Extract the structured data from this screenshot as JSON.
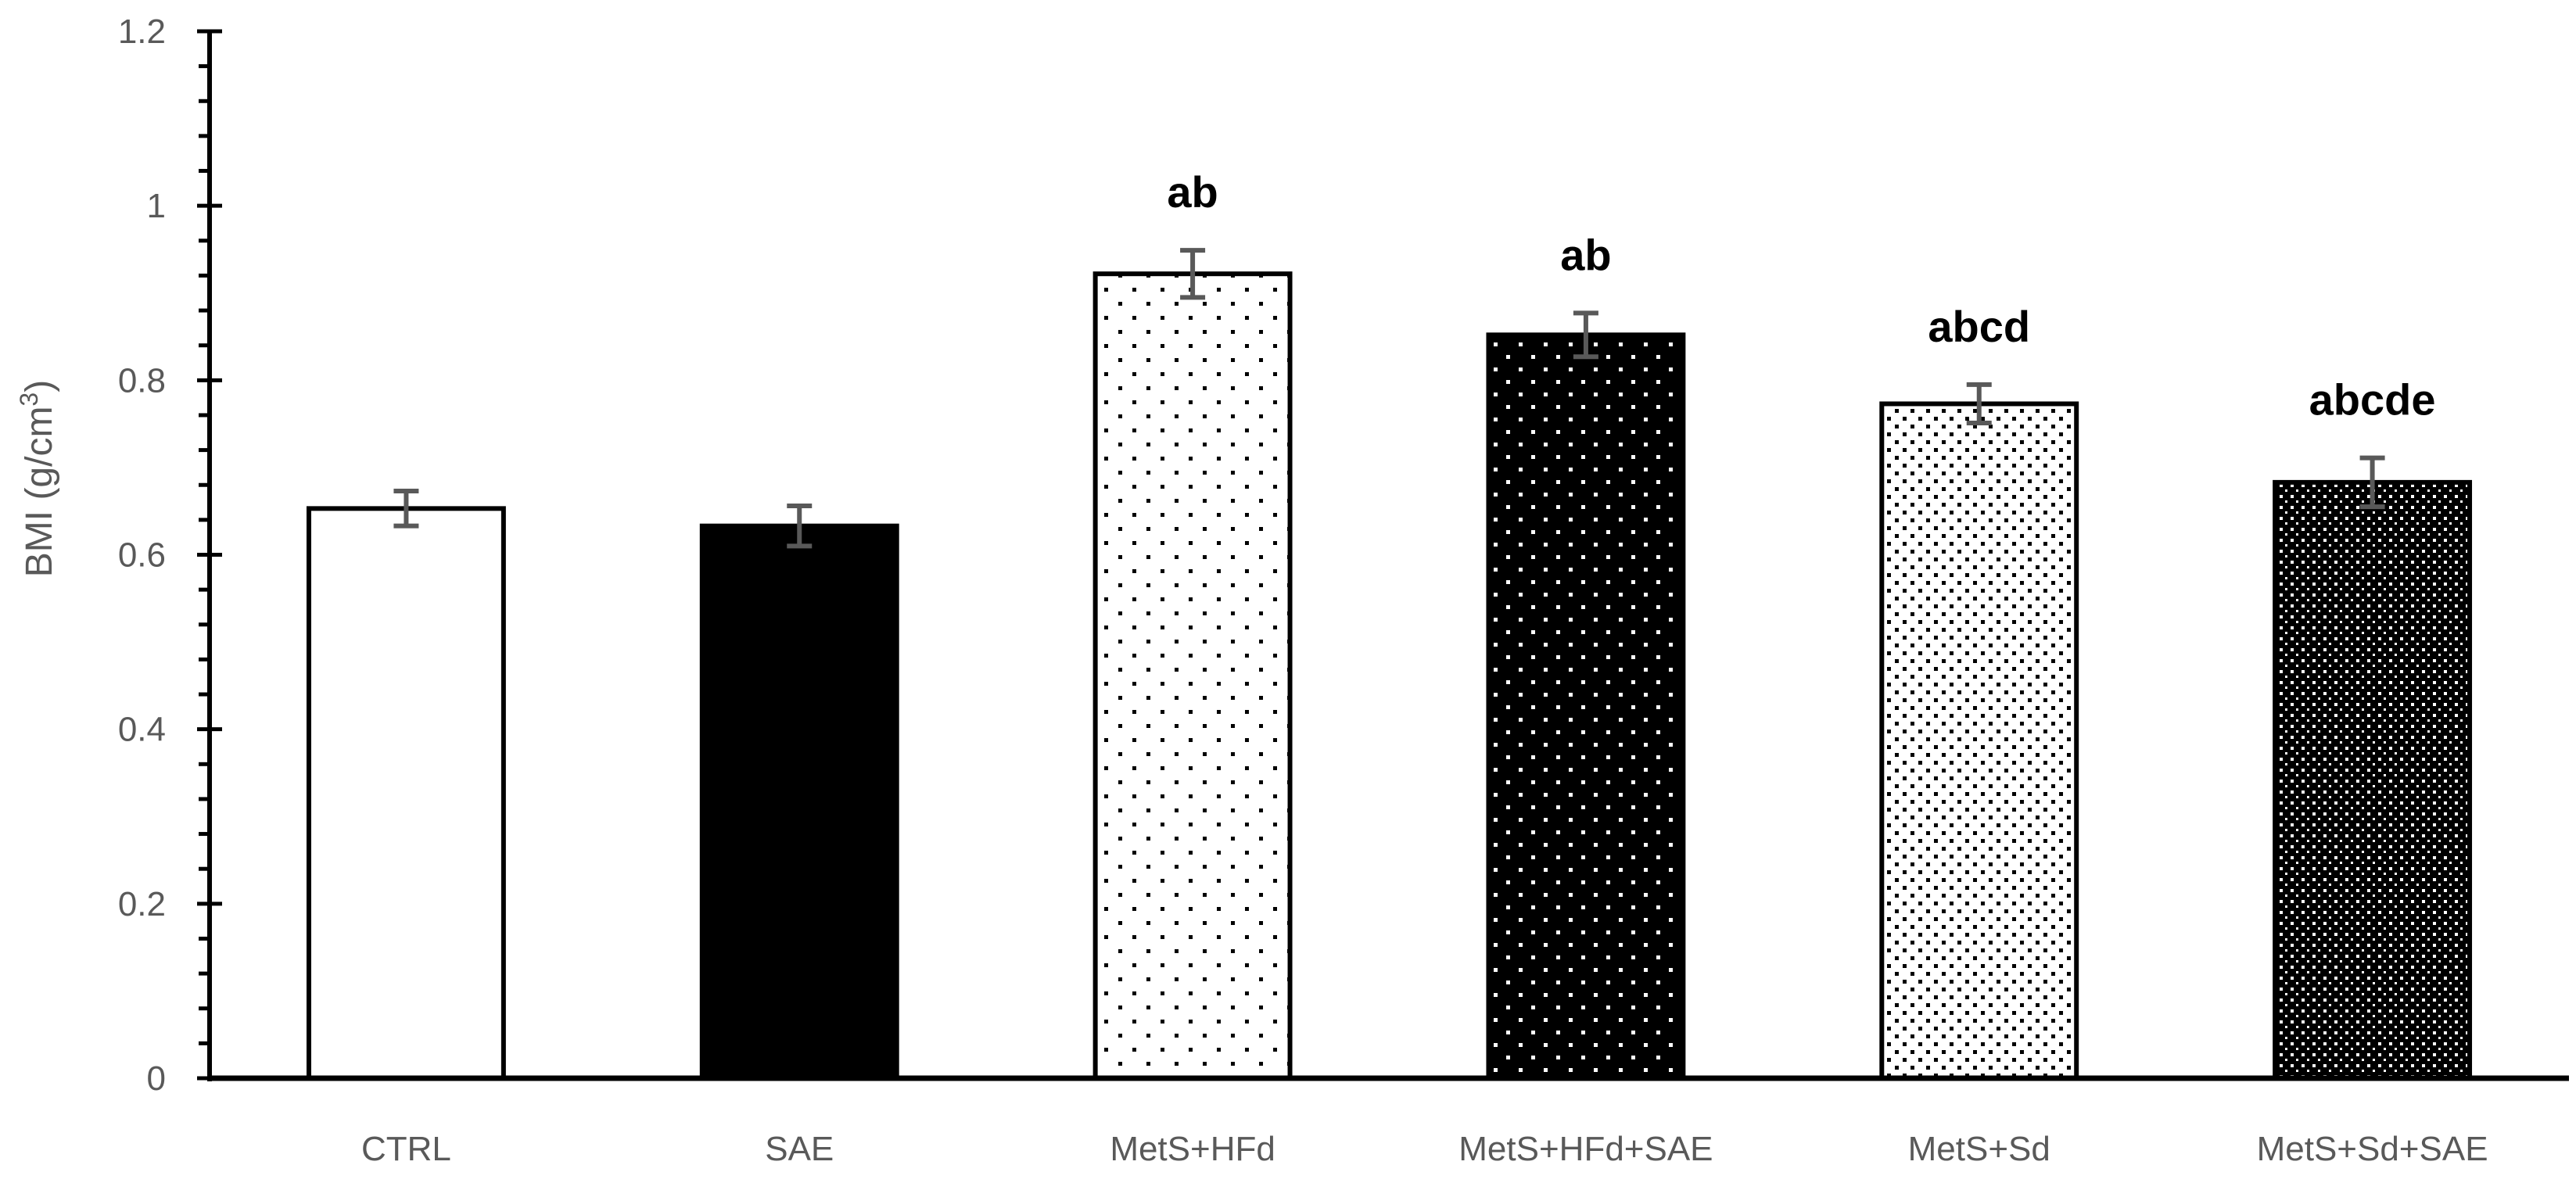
{
  "chart_data": {
    "type": "bar",
    "ylabel": "BMI (g/cm3)",
    "ylabel_parts": {
      "main": "BMI (g/cm",
      "sup": "3",
      "close": ")"
    },
    "xlabel": "",
    "ylim": [
      0,
      1.2
    ],
    "yticks": [
      "0",
      "0.2",
      "0.4",
      "0.6",
      "0.8",
      "1",
      "1.2"
    ],
    "categories": [
      "CTRL",
      "SAE",
      "MetS+HFd",
      "MetS+HFd+SAE",
      "MetS+Sd",
      "MetS+Sd+SAE"
    ],
    "values": [
      0.653,
      0.633,
      0.922,
      0.852,
      0.773,
      0.683
    ],
    "errors": [
      0.02,
      0.023,
      0.027,
      0.025,
      0.022,
      0.028
    ],
    "annotations": [
      "",
      "",
      "ab",
      "ab",
      "abcd",
      "abcde"
    ],
    "fills": [
      "white",
      "black",
      "white-sparse-dots",
      "black-white-dots",
      "white-dense-dots",
      "black-dense-dots"
    ],
    "legend": "none",
    "grid": false
  }
}
